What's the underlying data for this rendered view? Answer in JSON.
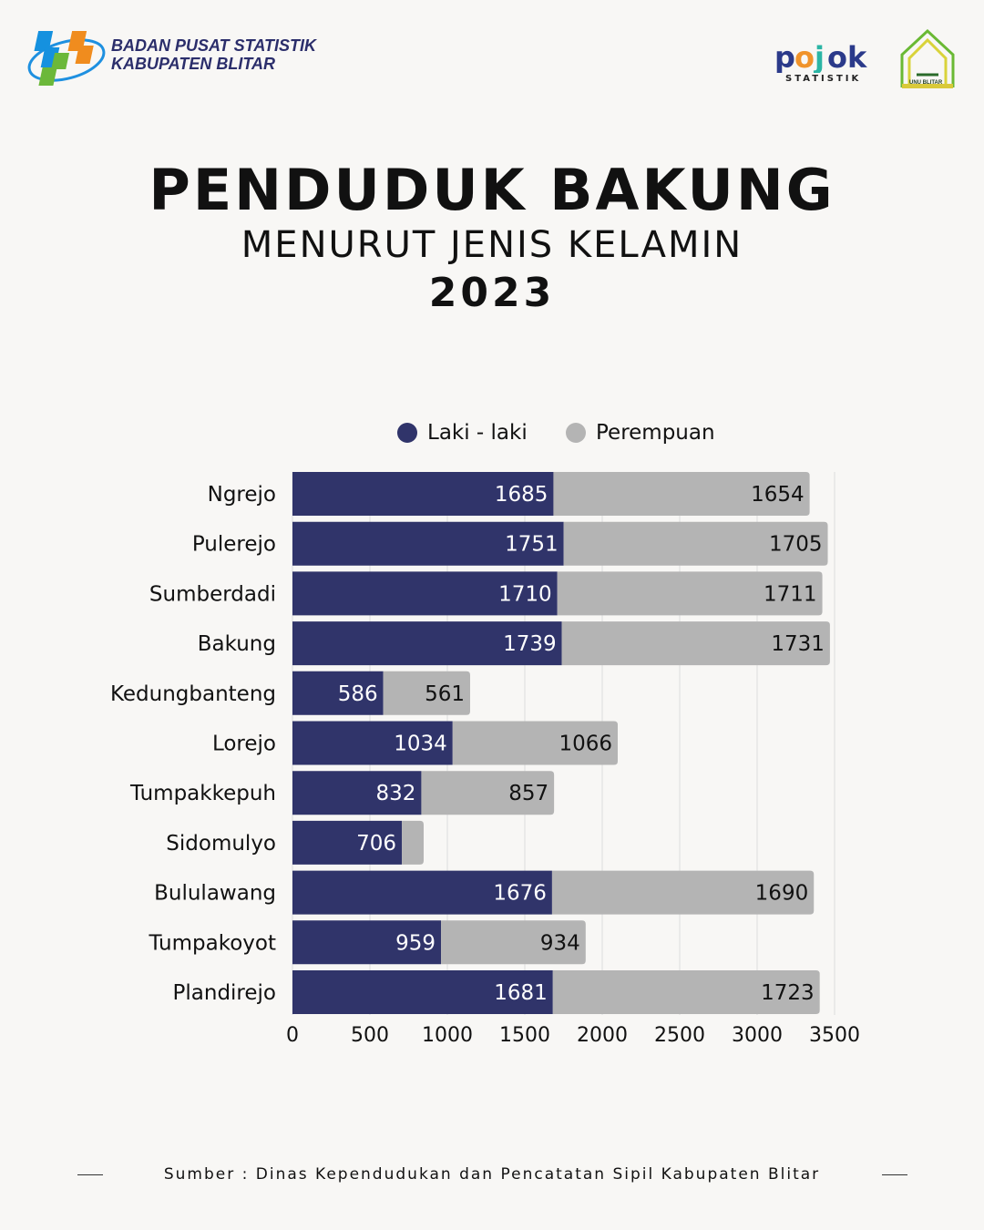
{
  "header": {
    "org_name_line1": "BADAN PUSAT STATISTIK",
    "org_name_line2": "KABUPATEN BLITAR",
    "partner_logo_text": "pojok",
    "partner_logo_subtext": "STATISTIK",
    "university_logo_text": "UNU BLITAR"
  },
  "title": "PENDUDUK BAKUNG",
  "subtitle": "MENURUT JENIS KELAMIN",
  "year": "2023",
  "source": "Sumber : Dinas Kependudukan dan Pencatatan Sipil Kabupaten Blitar",
  "chart_data": {
    "type": "bar",
    "orientation": "horizontal",
    "stacked": true,
    "categories": [
      "Ngrejo",
      "Pulerejo",
      "Sumberdadi",
      "Bakung",
      "Kedungbanteng",
      "Lorejo",
      "Tumpakkepuh",
      "Sidomulyo",
      "Bululawang",
      "Tumpakoyot",
      "Plandirejo"
    ],
    "series": [
      {
        "name": "Laki - laki",
        "color": "#30346a",
        "values": [
          1685,
          1751,
          1710,
          1739,
          586,
          1034,
          832,
          706,
          1676,
          959,
          1681
        ],
        "labels": [
          "1685",
          "1751",
          "1710",
          "1739",
          "586",
          "1034",
          "832",
          "706",
          "1676",
          "959",
          "1681"
        ]
      },
      {
        "name": "Perempuan",
        "color": "#b4b4b4",
        "values": [
          1654,
          1705,
          1711,
          1731,
          561,
          1066,
          857,
          141,
          1690,
          934,
          1723
        ],
        "labels": [
          "1654",
          "1705",
          "1711",
          "1731",
          "561",
          "1066",
          "857",
          null,
          "1690",
          "934",
          "1723"
        ]
      }
    ],
    "xlim": [
      0,
      3500
    ],
    "xticks": [
      "0",
      "500",
      "1000",
      "1500",
      "2000",
      "2500",
      "3000",
      "3500"
    ],
    "grid": true,
    "legend": "top"
  }
}
